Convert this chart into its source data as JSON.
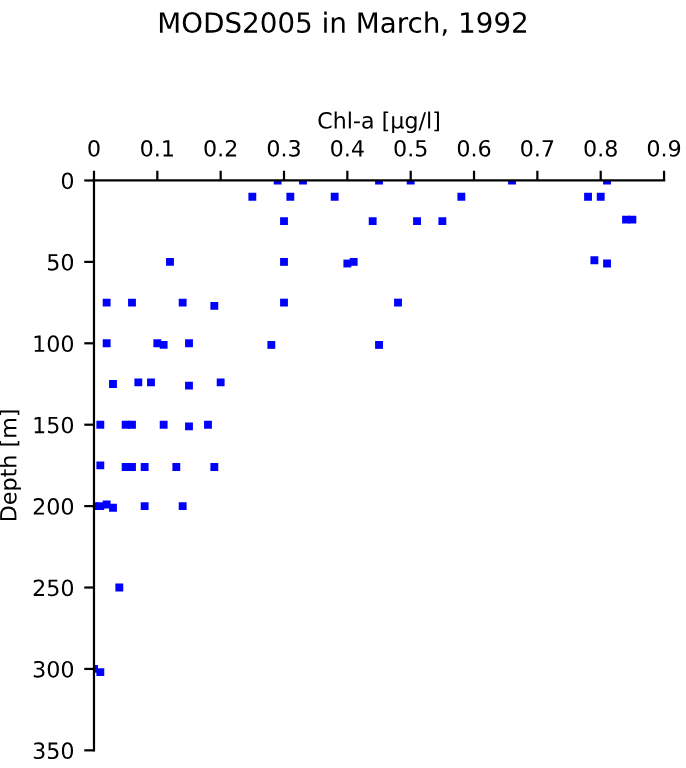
{
  "chart_data": {
    "type": "scatter",
    "title": "MODS2005 in March, 1992",
    "xlabel": "Chl-a [µg/l]",
    "ylabel": "Depth [m]",
    "series": [
      {
        "color": "#0000ff",
        "x": [
          0.29,
          0.33,
          0.45,
          0.5,
          0.66,
          0.81,
          0.25,
          0.31,
          0.38,
          0.58,
          0.78,
          0.8,
          0.3,
          0.44,
          0.51,
          0.55,
          0.84,
          0.85,
          0.12,
          0.3,
          0.4,
          0.41,
          0.79,
          0.81,
          0.02,
          0.06,
          0.14,
          0.19,
          0.3,
          0.48,
          0.02,
          0.1,
          0.11,
          0.15,
          0.28,
          0.45,
          0.03,
          0.07,
          0.09,
          0.15,
          0.2,
          0.01,
          0.05,
          0.06,
          0.11,
          0.15,
          0.18,
          0.01,
          0.05,
          0.06,
          0.08,
          0.13,
          0.19,
          0,
          0.01,
          0.02,
          0.03,
          0.08,
          0.14,
          0.04,
          0,
          0.01
        ],
        "values": [
          0,
          0,
          0,
          0,
          0,
          0,
          10,
          10,
          10,
          10,
          10,
          10,
          25,
          25,
          25,
          25,
          24,
          24,
          50,
          50,
          51,
          50,
          49,
          51,
          75,
          75,
          75,
          77,
          75,
          75,
          100,
          100,
          101,
          100,
          101,
          101,
          125,
          124,
          124,
          126,
          124,
          150,
          150,
          150,
          150,
          151,
          150,
          175,
          176,
          176,
          176,
          176,
          176,
          200,
          200,
          199,
          201,
          200,
          200,
          250,
          300,
          302
        ]
      }
    ],
    "xlim": [
      0,
      0.9
    ],
    "xticks": [
      0,
      0.1,
      0.2,
      0.3,
      0.4,
      0.5,
      0.6,
      0.7,
      0.8,
      0.9
    ],
    "ylim": [
      350,
      0
    ],
    "yticks": [
      0,
      50,
      100,
      150,
      200,
      250,
      300,
      350
    ],
    "marker": "square",
    "grid": false,
    "legend": false
  }
}
